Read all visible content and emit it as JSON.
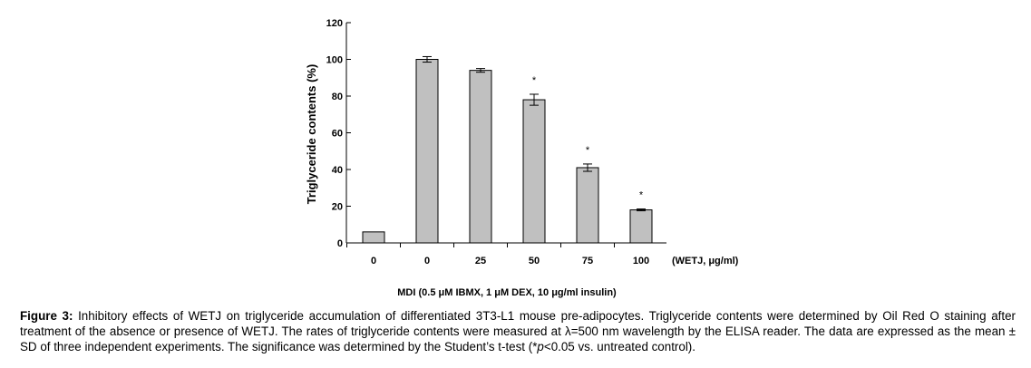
{
  "chart_data": {
    "type": "bar",
    "categories": [
      "0",
      "0",
      "25",
      "50",
      "75",
      "100"
    ],
    "values": [
      6,
      100,
      94,
      78,
      41,
      18
    ],
    "errors": [
      0,
      1.5,
      1,
      3,
      2,
      0.5
    ],
    "significant": [
      false,
      false,
      false,
      true,
      true,
      true
    ],
    "significance_marker": "*",
    "ylabel": "Triglyceride contents (%)",
    "ylim": [
      0,
      120
    ],
    "yticks": [
      "0",
      "20",
      "40",
      "60",
      "80",
      "100",
      "120"
    ],
    "x_unit_label": "(WETJ, μg/ml)",
    "group_label": "MDI (0.5 μM IBMX, 1 μM DEX, 10 μg/ml insulin)",
    "bar_color": "#c0c0c0",
    "grid": false
  },
  "caption": {
    "label": "Figure 3:",
    "text_1": " Inhibitory effects of WETJ on triglyceride accumulation of differentiated 3T3-L1 mouse pre-adipocytes. Triglyceride contents were determined by Oil Red O staining after treatment of the absence or presence of WETJ. The rates of triglyceride contents were measured at λ=500 nm wavelength by the ELISA reader. The data are expressed as the mean ± SD of three independent experiments. The significance was determined by the Student’s t-test (*",
    "italic_p": "p",
    "text_2": "<0.05 vs. untreated control)."
  }
}
